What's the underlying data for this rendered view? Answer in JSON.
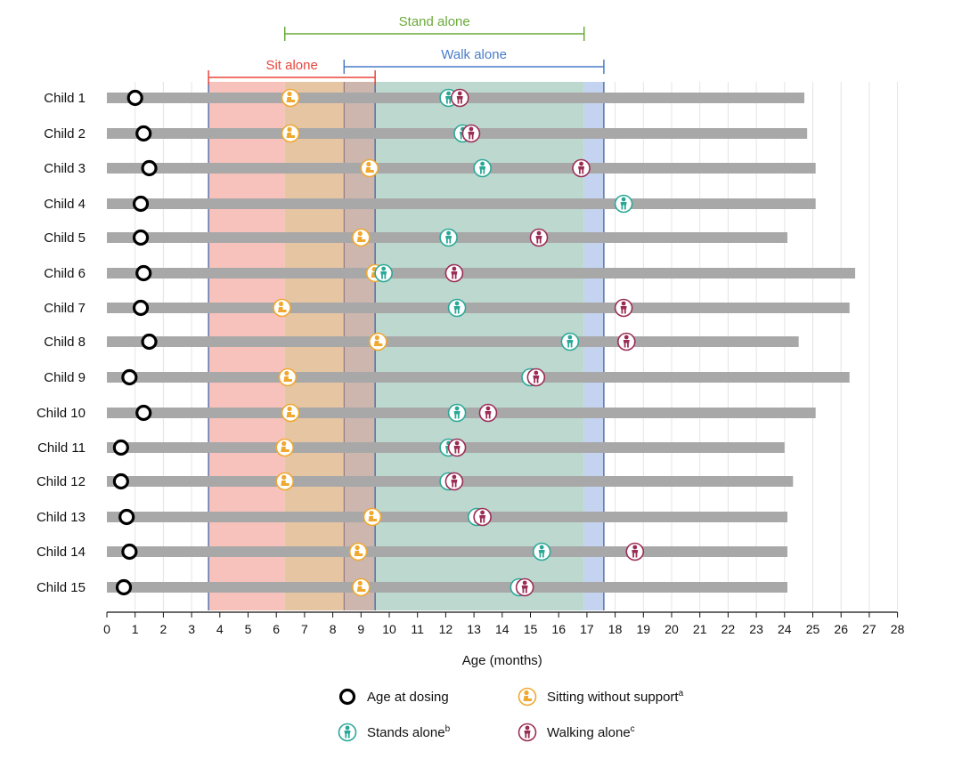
{
  "chart_data": {
    "type": "scatter",
    "title": "",
    "xlabel": "Age (months)",
    "ylabel": "",
    "xlim": [
      0,
      28
    ],
    "xticks": [
      0,
      1,
      2,
      3,
      4,
      5,
      6,
      7,
      8,
      9,
      10,
      11,
      12,
      13,
      14,
      15,
      16,
      17,
      18,
      19,
      20,
      21,
      22,
      23,
      24,
      25,
      26,
      27,
      28
    ],
    "children": [
      {
        "label": "Child 1",
        "dosing": 1.0,
        "sit": 6.5,
        "stand": 12.1,
        "walk": 12.5,
        "end": 24.7
      },
      {
        "label": "Child 2",
        "dosing": 1.3,
        "sit": 6.5,
        "stand": 12.6,
        "walk": 12.9,
        "end": 24.8
      },
      {
        "label": "Child 3",
        "dosing": 1.5,
        "sit": 9.3,
        "stand": 13.3,
        "walk": 16.8,
        "end": 25.1
      },
      {
        "label": "Child 4",
        "dosing": 1.2,
        "sit": null,
        "stand": 18.3,
        "walk": null,
        "end": 25.1
      },
      {
        "label": "Child 5",
        "dosing": 1.2,
        "sit": 9.0,
        "stand": 12.1,
        "walk": 15.3,
        "end": 24.1
      },
      {
        "label": "Child 6",
        "dosing": 1.3,
        "sit": 9.5,
        "stand": 9.8,
        "walk": 12.3,
        "end": 26.5
      },
      {
        "label": "Child 7",
        "dosing": 1.2,
        "sit": 6.2,
        "stand": 12.4,
        "walk": 18.3,
        "end": 26.3
      },
      {
        "label": "Child 8",
        "dosing": 1.5,
        "sit": 9.6,
        "stand": 16.4,
        "walk": 18.4,
        "end": 24.5
      },
      {
        "label": "Child 9",
        "dosing": 0.8,
        "sit": 6.4,
        "stand": 15.0,
        "walk": 15.2,
        "end": 26.3
      },
      {
        "label": "Child 10",
        "dosing": 1.3,
        "sit": 6.5,
        "stand": 12.4,
        "walk": 13.5,
        "end": 25.1
      },
      {
        "label": "Child 11",
        "dosing": 0.5,
        "sit": 6.3,
        "stand": 12.1,
        "walk": 12.4,
        "end": 24.0
      },
      {
        "label": "Child 12",
        "dosing": 0.5,
        "sit": 6.3,
        "stand": 12.1,
        "walk": 12.3,
        "end": 24.3
      },
      {
        "label": "Child 13",
        "dosing": 0.7,
        "sit": 9.4,
        "stand": 13.1,
        "walk": 13.3,
        "end": 24.1
      },
      {
        "label": "Child 14",
        "dosing": 0.8,
        "sit": 8.9,
        "stand": 15.4,
        "walk": 18.7,
        "end": 24.1
      },
      {
        "label": "Child 15",
        "dosing": 0.6,
        "sit": 9.0,
        "stand": 14.6,
        "walk": 14.8,
        "end": 24.1
      }
    ],
    "windows": [
      {
        "name": "Sit alone",
        "start": 3.6,
        "end": 9.5,
        "color": "#e8453c"
      },
      {
        "name": "Walk alone",
        "start": 8.4,
        "end": 17.6,
        "color": "#4a7cc9"
      },
      {
        "name": "Stand alone",
        "start": 6.3,
        "end": 16.9,
        "color": "#6aaa3a"
      }
    ],
    "legend": [
      {
        "key": "dosing",
        "label": "Age at dosing",
        "sup": ""
      },
      {
        "key": "sit",
        "label": "Sitting without support",
        "sup": "a"
      },
      {
        "key": "stand",
        "label": "Stands alone",
        "sup": "b"
      },
      {
        "key": "walk",
        "label": "Walking alone",
        "sup": "c"
      }
    ],
    "colors": {
      "bar": "#a8a8a8",
      "dosing": "#000000",
      "sit": "#f0a830",
      "stand": "#2aa897",
      "walk": "#9b2d55",
      "sit_fill": "#f7c2bb",
      "sit_stand_fill": "#e6c5a3",
      "overlap_fill": "#ccb6ae",
      "stand_walk_fill": "#bcd8cf",
      "walk_fill": "#c4d3ef"
    }
  }
}
